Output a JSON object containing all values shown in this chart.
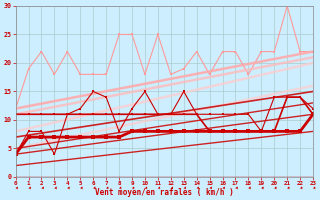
{
  "background_color": "#cceeff",
  "grid_color": "#aacccc",
  "xlim": [
    0,
    23
  ],
  "ylim": [
    0,
    30
  ],
  "yticks": [
    0,
    5,
    10,
    15,
    20,
    25,
    30
  ],
  "xticks": [
    0,
    1,
    2,
    3,
    4,
    5,
    6,
    7,
    8,
    9,
    10,
    11,
    12,
    13,
    14,
    15,
    16,
    17,
    18,
    19,
    20,
    21,
    22,
    23
  ],
  "xlabel": "Vent moyen/en rafales ( km/h )",
  "tick_color": "#cc0000",
  "series": [
    {
      "x": [
        0,
        1,
        2,
        3,
        4,
        5,
        6,
        7,
        8,
        9,
        10,
        11,
        12,
        13,
        14,
        15,
        16,
        17,
        18,
        19,
        20,
        21,
        22,
        23
      ],
      "y": [
        12,
        19,
        22,
        18,
        22,
        18,
        18,
        18,
        25,
        25,
        18,
        25,
        18,
        19,
        22,
        18,
        22,
        22,
        18,
        22,
        22,
        30,
        22,
        22
      ],
      "color": "#ff9999",
      "linewidth": 0.8,
      "marker": "s",
      "markersize": 2.0,
      "alpha": 1.0
    },
    {
      "x": [
        0,
        23
      ],
      "y": [
        12,
        22
      ],
      "color": "#ffaaaa",
      "linewidth": 1.8,
      "marker": null,
      "markersize": 0,
      "alpha": 0.9
    },
    {
      "x": [
        0,
        23
      ],
      "y": [
        11,
        21
      ],
      "color": "#ffbbbb",
      "linewidth": 1.8,
      "marker": null,
      "markersize": 0,
      "alpha": 0.8
    },
    {
      "x": [
        0,
        23
      ],
      "y": [
        8,
        20
      ],
      "color": "#ffcccc",
      "linewidth": 1.8,
      "marker": null,
      "markersize": 0,
      "alpha": 0.75
    },
    {
      "x": [
        0,
        23
      ],
      "y": [
        5,
        16
      ],
      "color": "#ffcccc",
      "linewidth": 1.8,
      "marker": null,
      "markersize": 0,
      "alpha": 0.7
    },
    {
      "x": [
        0,
        23
      ],
      "y": [
        7,
        15
      ],
      "color": "#cc2222",
      "linewidth": 1.2,
      "marker": null,
      "markersize": 0,
      "alpha": 1.0
    },
    {
      "x": [
        0,
        23
      ],
      "y": [
        5,
        13
      ],
      "color": "#cc2222",
      "linewidth": 1.0,
      "marker": null,
      "markersize": 0,
      "alpha": 1.0
    },
    {
      "x": [
        0,
        23
      ],
      "y": [
        4,
        11
      ],
      "color": "#cc2222",
      "linewidth": 1.0,
      "marker": null,
      "markersize": 0,
      "alpha": 1.0
    },
    {
      "x": [
        0,
        23
      ],
      "y": [
        2,
        8
      ],
      "color": "#cc2222",
      "linewidth": 1.0,
      "marker": null,
      "markersize": 0,
      "alpha": 1.0
    },
    {
      "x": [
        0,
        1,
        2,
        3,
        4,
        5,
        6,
        7,
        8,
        9,
        10,
        11,
        12,
        13,
        14,
        15,
        16,
        17,
        18,
        19,
        20,
        21,
        22,
        23
      ],
      "y": [
        4,
        8,
        8,
        4,
        11,
        12,
        15,
        14,
        8,
        12,
        15,
        11,
        11,
        15,
        11,
        11,
        11,
        11,
        11,
        8,
        14,
        14,
        14,
        12
      ],
      "color": "#cc0000",
      "linewidth": 0.8,
      "marker": "s",
      "markersize": 2.0,
      "alpha": 1.0
    },
    {
      "x": [
        0,
        1,
        2,
        3,
        4,
        5,
        6,
        7,
        8,
        9,
        10,
        11,
        12,
        13,
        14,
        15,
        16,
        17,
        18,
        19,
        20,
        21,
        22,
        23
      ],
      "y": [
        4,
        7,
        7,
        7,
        7,
        7,
        7,
        7,
        7,
        8,
        8,
        8,
        8,
        8,
        8,
        8,
        8,
        8,
        8,
        8,
        8,
        8,
        8,
        11
      ],
      "color": "#cc0000",
      "linewidth": 2.0,
      "marker": "s",
      "markersize": 2.5,
      "alpha": 1.0
    },
    {
      "x": [
        0,
        1,
        2,
        3,
        4,
        5,
        6,
        7,
        8,
        9,
        10,
        11,
        12,
        13,
        14,
        15,
        16,
        17,
        18,
        19,
        20,
        21,
        22,
        23
      ],
      "y": [
        11,
        11,
        11,
        11,
        11,
        11,
        11,
        11,
        11,
        11,
        11,
        11,
        11,
        11,
        11,
        8,
        8,
        8,
        8,
        8,
        8,
        14,
        14,
        11
      ],
      "color": "#cc0000",
      "linewidth": 1.2,
      "marker": "s",
      "markersize": 2.0,
      "alpha": 1.0
    }
  ],
  "arrow_color": "#cc0000"
}
